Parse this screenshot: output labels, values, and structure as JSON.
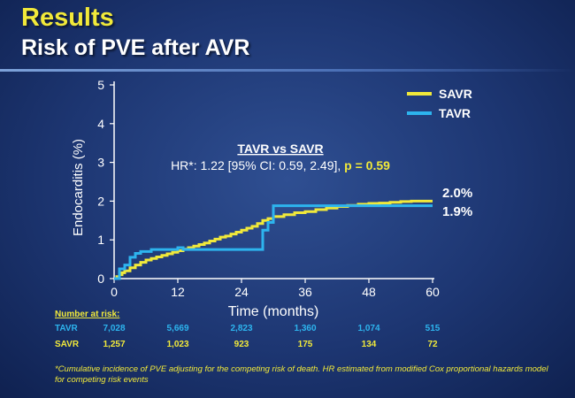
{
  "slide": {
    "title": "Results",
    "subtitle": "Risk of PVE after AVR",
    "footnote": "*Cumulative incidence of PVE adjusting for the competing risk of death. HR estimated from modified Cox proportional hazards model for competing risk events"
  },
  "colors": {
    "savr": "#f1e93a",
    "tavr": "#2db4ee",
    "background": "#1d3672",
    "text": "#ffffff"
  },
  "chart_data": {
    "type": "line",
    "step": true,
    "xlabel": "Time (months)",
    "ylabel": "Endocarditis (%)",
    "xlim": [
      0,
      60
    ],
    "ylim": [
      0,
      5
    ],
    "xticks": [
      0,
      12,
      24,
      36,
      48,
      60
    ],
    "yticks": [
      0,
      1,
      2,
      3,
      4,
      5
    ],
    "grid": false,
    "legend": "top-right",
    "annotation": {
      "heading": "TAVR vs SAVR",
      "hr_text": "HR*: 1.22 [95% CI: 0.59, 2.49], ",
      "p_text": "p = 0.59"
    },
    "series": [
      {
        "name": "SAVR",
        "end_label": "2.0%",
        "x": [
          0,
          0.5,
          1,
          1.5,
          2,
          3,
          4,
          5,
          6,
          7,
          8,
          9,
          10,
          11,
          12,
          13,
          14,
          15,
          16,
          17,
          18,
          19,
          20,
          21,
          22,
          23,
          24,
          25,
          26,
          27,
          28,
          29,
          30,
          32,
          34,
          36,
          38,
          40,
          42,
          44,
          46,
          48,
          50,
          52,
          54,
          56,
          58,
          60
        ],
        "y": [
          0,
          0.05,
          0.1,
          0.15,
          0.2,
          0.28,
          0.35,
          0.42,
          0.48,
          0.52,
          0.56,
          0.6,
          0.64,
          0.68,
          0.72,
          0.76,
          0.8,
          0.84,
          0.88,
          0.92,
          0.97,
          1.02,
          1.07,
          1.1,
          1.15,
          1.2,
          1.25,
          1.3,
          1.35,
          1.42,
          1.5,
          1.55,
          1.6,
          1.65,
          1.7,
          1.73,
          1.78,
          1.82,
          1.86,
          1.89,
          1.92,
          1.94,
          1.95,
          1.97,
          1.99,
          2.0,
          2.0,
          2.0
        ]
      },
      {
        "name": "TAVR",
        "end_label": "1.9%",
        "x": [
          0,
          1,
          2,
          3,
          4,
          5,
          6,
          7,
          8,
          9,
          12,
          13,
          27,
          28,
          29,
          30,
          60
        ],
        "y": [
          0,
          0.25,
          0.35,
          0.55,
          0.65,
          0.7,
          0.7,
          0.75,
          0.75,
          0.75,
          0.8,
          0.75,
          0.75,
          1.25,
          1.45,
          1.88,
          1.88
        ]
      }
    ]
  },
  "risk_table": {
    "header": "Number at risk:",
    "rows": [
      {
        "name": "TAVR",
        "values": [
          "7,028",
          "5,669",
          "2,823",
          "1,360",
          "1,074",
          "515"
        ]
      },
      {
        "name": "SAVR",
        "values": [
          "1,257",
          "1,023",
          "923",
          "175",
          "134",
          "72"
        ]
      }
    ]
  }
}
